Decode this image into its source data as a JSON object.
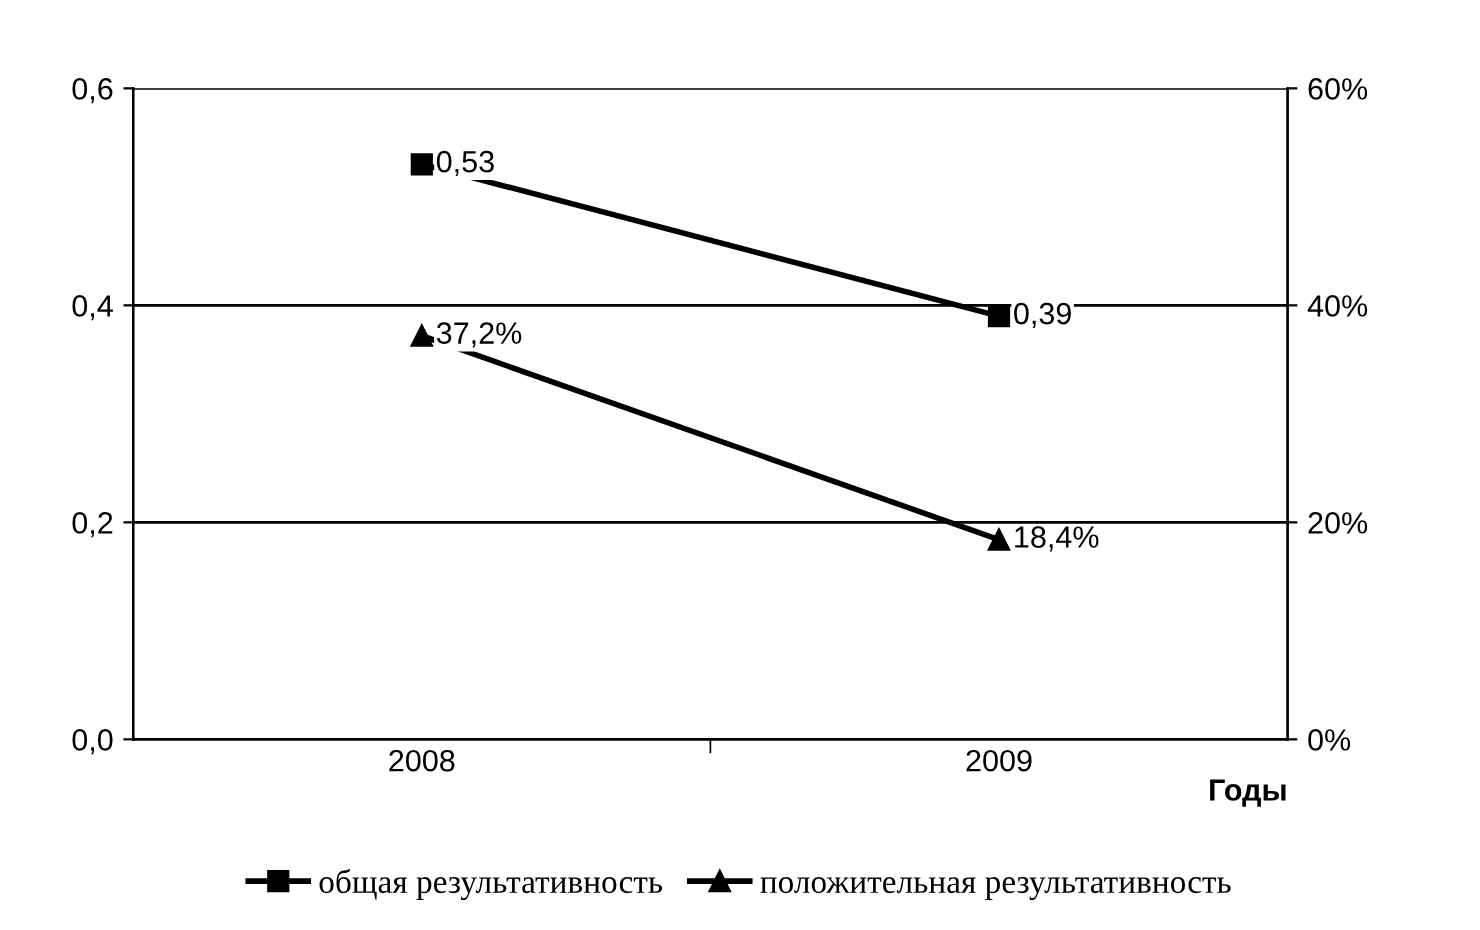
{
  "chart_data": {
    "type": "line",
    "xlabel": "Годы",
    "categories": [
      "2008",
      "2009"
    ],
    "series": [
      {
        "name": "общая результативность",
        "color": "#000000",
        "marker": "square",
        "values": [
          0.53,
          0.39
        ],
        "value_labels": [
          "0,53",
          "0,39"
        ]
      },
      {
        "name": "положительная результативность",
        "color": "#000000",
        "marker": "triangle",
        "axis": "y2",
        "values": [
          37.2,
          18.4
        ],
        "value_labels": [
          "37,2%",
          "18,4%"
        ]
      }
    ],
    "ylim": [
      0,
      0.6
    ],
    "yticks": [
      {
        "value": 0,
        "label": "0,0"
      },
      {
        "value": 0.2,
        "label": "0,2"
      },
      {
        "value": 0.4,
        "label": "0,4"
      },
      {
        "value": 0.6,
        "label": "0,6"
      }
    ],
    "y2lim": [
      0,
      60
    ],
    "y2ticks": [
      {
        "value": 0,
        "label": "0%"
      },
      {
        "value": 20,
        "label": "20%"
      },
      {
        "value": 40,
        "label": "40%"
      },
      {
        "value": 60,
        "label": "60%"
      }
    ],
    "grid": "y",
    "legend": "bottom",
    "line_style": "solid"
  }
}
